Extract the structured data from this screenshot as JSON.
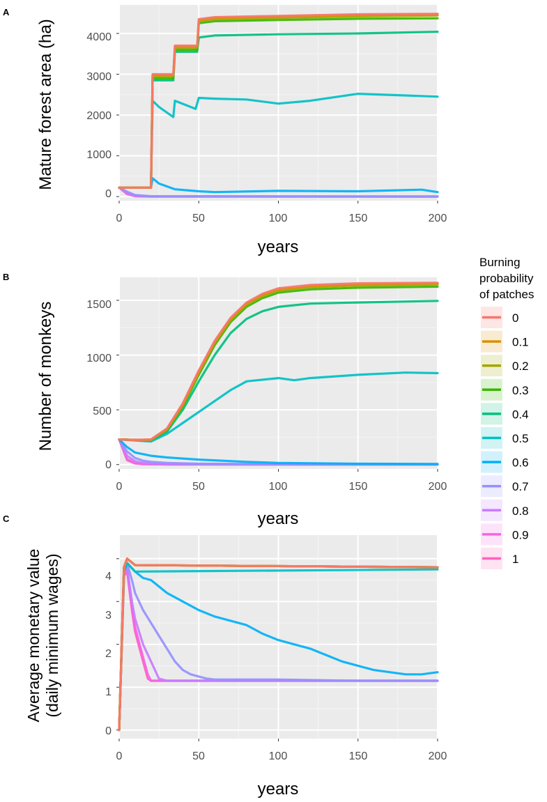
{
  "legend": {
    "title": [
      "Burning",
      "probability",
      "of patches"
    ],
    "items": [
      {
        "label": "0",
        "color": "#F8766D"
      },
      {
        "label": "0.1",
        "color": "#D89000"
      },
      {
        "label": "0.2",
        "color": "#A3A500"
      },
      {
        "label": "0.3",
        "color": "#39B600"
      },
      {
        "label": "0.4",
        "color": "#00BF7D"
      },
      {
        "label": "0.5",
        "color": "#00BFC4"
      },
      {
        "label": "0.6",
        "color": "#00B0F6"
      },
      {
        "label": "0.7",
        "color": "#9590FF"
      },
      {
        "label": "0.8",
        "color": "#C77CFF"
      },
      {
        "label": "0.9",
        "color": "#F564E3"
      },
      {
        "label": "1",
        "color": "#FF62BC"
      }
    ]
  },
  "chart_data": [
    {
      "panel": "A",
      "type": "line",
      "xlabel": "years",
      "ylabel": "Mature forest area (ha)",
      "xlim": [
        0,
        200
      ],
      "ylim": [
        -100,
        4700
      ],
      "xticks": [
        0,
        50,
        100,
        150,
        200
      ],
      "yticks": [
        0,
        1000,
        2000,
        3000,
        4000
      ],
      "series": [
        {
          "name": "0",
          "x": [
            0,
            20,
            21,
            34,
            35,
            49,
            50,
            60,
            100,
            150,
            200
          ],
          "y": [
            220,
            220,
            3000,
            3000,
            3700,
            3700,
            4350,
            4400,
            4430,
            4470,
            4480
          ],
          "band": [
            0,
            0
          ]
        },
        {
          "name": "0.1",
          "x": [
            0,
            20,
            21,
            34,
            35,
            49,
            50,
            60,
            100,
            150,
            200
          ],
          "y": [
            220,
            220,
            2980,
            2980,
            3680,
            3680,
            4330,
            4380,
            4410,
            4450,
            4470
          ],
          "band": [
            0,
            0
          ]
        },
        {
          "name": "0.2",
          "x": [
            0,
            20,
            21,
            34,
            35,
            49,
            50,
            60,
            100,
            150,
            200
          ],
          "y": [
            220,
            220,
            2950,
            2950,
            3650,
            3650,
            4300,
            4350,
            4380,
            4420,
            4440
          ],
          "band": [
            0,
            0
          ]
        },
        {
          "name": "0.3",
          "x": [
            0,
            20,
            21,
            34,
            35,
            49,
            50,
            60,
            100,
            150,
            200
          ],
          "y": [
            220,
            220,
            2900,
            2900,
            3600,
            3600,
            4250,
            4300,
            4330,
            4360,
            4370
          ],
          "band": [
            0,
            0
          ]
        },
        {
          "name": "0.4",
          "x": [
            0,
            20,
            21,
            34,
            35,
            49,
            50,
            60,
            100,
            150,
            200
          ],
          "y": [
            220,
            220,
            2850,
            2850,
            3550,
            3550,
            3900,
            3950,
            3980,
            4000,
            4040
          ],
          "band": [
            0,
            0
          ]
        },
        {
          "name": "0.5",
          "x": [
            0,
            20,
            21,
            25,
            34,
            35,
            48,
            50,
            60,
            80,
            100,
            120,
            150,
            180,
            200
          ],
          "y": [
            220,
            220,
            2350,
            2200,
            1950,
            2350,
            2150,
            2420,
            2400,
            2380,
            2280,
            2350,
            2520,
            2480,
            2450
          ],
          "band": [
            0,
            0
          ]
        },
        {
          "name": "0.6",
          "x": [
            0,
            20,
            21,
            25,
            35,
            50,
            60,
            100,
            150,
            190,
            200
          ],
          "y": [
            220,
            220,
            450,
            320,
            180,
            130,
            110,
            140,
            130,
            170,
            110
          ],
          "band": [
            0,
            0
          ]
        },
        {
          "name": "0.7",
          "x": [
            0,
            5,
            10,
            20,
            200
          ],
          "y": [
            220,
            120,
            40,
            10,
            5
          ],
          "band": [
            0,
            0
          ]
        },
        {
          "name": "0.8",
          "x": [
            0,
            5,
            10,
            20,
            200
          ],
          "y": [
            220,
            100,
            20,
            5,
            2
          ],
          "band": [
            0,
            0
          ]
        },
        {
          "name": "0.9",
          "x": [
            0,
            5,
            10,
            20,
            200
          ],
          "y": [
            220,
            80,
            15,
            3,
            0
          ],
          "band": [
            0,
            0
          ]
        },
        {
          "name": "1",
          "x": [
            0,
            5,
            10,
            20,
            200
          ],
          "y": [
            220,
            60,
            10,
            0,
            0
          ],
          "band": [
            0,
            0
          ]
        }
      ]
    },
    {
      "panel": "B",
      "type": "line",
      "xlabel": "years",
      "ylabel": "Number of monkeys",
      "xlim": [
        0,
        200
      ],
      "ylim": [
        -40,
        1710
      ],
      "xticks": [
        0,
        50,
        100,
        150,
        200
      ],
      "yticks": [
        0,
        500,
        1000,
        1500
      ],
      "series": [
        {
          "name": "0",
          "x": [
            0,
            10,
            20,
            30,
            40,
            50,
            60,
            70,
            80,
            90,
            100,
            120,
            150,
            200
          ],
          "y": [
            230,
            225,
            230,
            330,
            560,
            860,
            1130,
            1340,
            1480,
            1560,
            1610,
            1640,
            1655,
            1660
          ],
          "band": [
            0,
            0
          ]
        },
        {
          "name": "0.1",
          "x": [
            0,
            10,
            20,
            30,
            40,
            50,
            60,
            70,
            80,
            90,
            100,
            120,
            150,
            200
          ],
          "y": [
            230,
            225,
            228,
            325,
            550,
            850,
            1120,
            1330,
            1470,
            1550,
            1600,
            1630,
            1645,
            1655
          ],
          "band": [
            0,
            0
          ]
        },
        {
          "name": "0.2",
          "x": [
            0,
            10,
            20,
            30,
            40,
            50,
            60,
            70,
            80,
            90,
            100,
            120,
            150,
            200
          ],
          "y": [
            230,
            225,
            225,
            320,
            540,
            840,
            1110,
            1320,
            1460,
            1540,
            1590,
            1620,
            1635,
            1645
          ],
          "band": [
            0,
            0
          ]
        },
        {
          "name": "0.3",
          "x": [
            0,
            10,
            20,
            30,
            40,
            50,
            60,
            70,
            80,
            90,
            100,
            120,
            150,
            200
          ],
          "y": [
            230,
            225,
            225,
            315,
            530,
            820,
            1090,
            1300,
            1440,
            1520,
            1570,
            1600,
            1615,
            1625
          ],
          "band": [
            0,
            0
          ]
        },
        {
          "name": "0.4",
          "x": [
            0,
            10,
            20,
            30,
            40,
            50,
            60,
            70,
            80,
            90,
            100,
            120,
            150,
            200
          ],
          "y": [
            230,
            225,
            222,
            300,
            500,
            760,
            1000,
            1200,
            1330,
            1400,
            1440,
            1470,
            1480,
            1495
          ],
          "band": [
            0,
            0
          ]
        },
        {
          "name": "0.5",
          "x": [
            0,
            10,
            20,
            30,
            40,
            50,
            60,
            70,
            80,
            100,
            110,
            120,
            150,
            180,
            200
          ],
          "y": [
            230,
            220,
            210,
            280,
            380,
            480,
            580,
            680,
            760,
            790,
            770,
            790,
            820,
            840,
            835
          ],
          "band": [
            0,
            0
          ]
        },
        {
          "name": "0.6",
          "x": [
            0,
            5,
            10,
            20,
            30,
            50,
            80,
            100,
            150,
            200
          ],
          "y": [
            230,
            160,
            110,
            80,
            65,
            45,
            25,
            15,
            8,
            5
          ],
          "band": [
            0,
            0
          ]
        },
        {
          "name": "0.7",
          "x": [
            0,
            5,
            10,
            15,
            20,
            30,
            50,
            100,
            200
          ],
          "y": [
            230,
            120,
            60,
            35,
            25,
            15,
            8,
            4,
            2
          ],
          "band": [
            0,
            0
          ]
        },
        {
          "name": "0.8",
          "x": [
            0,
            5,
            10,
            15,
            20,
            30,
            50,
            200
          ],
          "y": [
            230,
            80,
            30,
            15,
            8,
            4,
            2,
            0
          ],
          "band": [
            0,
            0
          ]
        },
        {
          "name": "0.9",
          "x": [
            0,
            5,
            10,
            15,
            20,
            30,
            200
          ],
          "y": [
            230,
            50,
            15,
            6,
            3,
            1,
            0
          ],
          "band": [
            0,
            0
          ]
        },
        {
          "name": "1",
          "x": [
            0,
            5,
            10,
            15,
            20,
            200
          ],
          "y": [
            230,
            40,
            10,
            4,
            2,
            0
          ],
          "band": [
            0,
            0
          ]
        }
      ]
    },
    {
      "panel": "C",
      "type": "line",
      "xlabel": "years",
      "ylabel": "Average monetary value (daily minimum wages)",
      "xlim": [
        0,
        200
      ],
      "ylim": [
        -0.2,
        4.55
      ],
      "xticks": [
        0,
        50,
        100,
        150,
        200
      ],
      "yticks": [
        0,
        1,
        2,
        3,
        4
      ],
      "series": [
        {
          "name": "0",
          "x": [
            0,
            3,
            5,
            10,
            200
          ],
          "y": [
            0,
            3.8,
            4.0,
            3.85,
            3.8
          ],
          "band": [
            0,
            0
          ]
        },
        {
          "name": "0.1",
          "x": [
            0,
            3,
            5,
            10,
            200
          ],
          "y": [
            0,
            3.8,
            4.0,
            3.85,
            3.8
          ],
          "band": [
            0,
            0
          ]
        },
        {
          "name": "0.2",
          "x": [
            0,
            3,
            5,
            10,
            200
          ],
          "y": [
            0,
            3.8,
            4.0,
            3.85,
            3.8
          ],
          "band": [
            0,
            0
          ]
        },
        {
          "name": "0.3",
          "x": [
            0,
            3,
            5,
            10,
            200
          ],
          "y": [
            0,
            3.8,
            4.0,
            3.85,
            3.8
          ],
          "band": [
            0,
            0
          ]
        },
        {
          "name": "0.4",
          "x": [
            0,
            3,
            5,
            10,
            200
          ],
          "y": [
            0,
            3.8,
            4.0,
            3.85,
            3.8
          ],
          "band": [
            0,
            0
          ]
        },
        {
          "name": "0.5",
          "x": [
            0,
            3,
            5,
            10,
            200
          ],
          "y": [
            0,
            3.7,
            3.9,
            3.7,
            3.75
          ],
          "band": [
            0,
            0
          ]
        },
        {
          "name": "0.6",
          "x": [
            0,
            3,
            5,
            10,
            15,
            20,
            30,
            40,
            50,
            60,
            70,
            80,
            90,
            100,
            110,
            120,
            130,
            140,
            150,
            160,
            170,
            180,
            190,
            200
          ],
          "y": [
            0,
            3.7,
            3.9,
            3.7,
            3.55,
            3.5,
            3.2,
            3.0,
            2.8,
            2.65,
            2.55,
            2.45,
            2.25,
            2.1,
            2.0,
            1.9,
            1.75,
            1.6,
            1.5,
            1.4,
            1.35,
            1.3,
            1.3,
            1.35
          ],
          "band": [
            0,
            0
          ]
        },
        {
          "name": "0.7",
          "x": [
            0,
            3,
            5,
            8,
            10,
            15,
            20,
            25,
            30,
            35,
            40,
            45,
            50,
            55,
            60,
            100,
            150,
            200
          ],
          "y": [
            0,
            3.7,
            3.9,
            3.5,
            3.2,
            2.8,
            2.5,
            2.2,
            1.9,
            1.6,
            1.4,
            1.3,
            1.25,
            1.2,
            1.18,
            1.18,
            1.15,
            1.15
          ],
          "band": [
            0,
            0
          ]
        },
        {
          "name": "0.8",
          "x": [
            0,
            3,
            5,
            8,
            10,
            15,
            20,
            25,
            30,
            200
          ],
          "y": [
            0,
            3.6,
            3.8,
            3.0,
            2.6,
            2.0,
            1.6,
            1.2,
            1.15,
            1.15
          ],
          "band": [
            0,
            0
          ]
        },
        {
          "name": "0.9",
          "x": [
            0,
            3,
            5,
            8,
            10,
            15,
            18,
            20,
            200
          ],
          "y": [
            0,
            3.6,
            3.75,
            2.9,
            2.4,
            1.7,
            1.3,
            1.15,
            1.15
          ],
          "band": [
            0,
            0
          ]
        },
        {
          "name": "1",
          "x": [
            0,
            3,
            5,
            8,
            10,
            15,
            18,
            20,
            200
          ],
          "y": [
            0,
            3.6,
            3.7,
            2.8,
            2.3,
            1.6,
            1.2,
            1.15,
            1.15
          ],
          "band": [
            0,
            0
          ]
        }
      ]
    }
  ],
  "panels": [
    {
      "letter": "A",
      "ylabel": "Mature forest area (ha)",
      "xlabel": "years",
      "xticklabels": [
        "0",
        "50",
        "100",
        "150",
        "200"
      ],
      "yticklabels": [
        "0",
        "1000",
        "2000",
        "3000",
        "4000"
      ]
    },
    {
      "letter": "B",
      "ylabel": "Number of monkeys",
      "xlabel": "years",
      "xticklabels": [
        "0",
        "50",
        "100",
        "150",
        "200"
      ],
      "yticklabels": [
        "0",
        "500",
        "1000",
        "1500"
      ]
    },
    {
      "letter": "C",
      "ylabel_line1": "Average monetary value",
      "ylabel_line2": "(daily minimum wages)",
      "xlabel": "years",
      "xticklabels": [
        "0",
        "50",
        "100",
        "150",
        "200"
      ],
      "yticklabels": [
        "0",
        "1",
        "2",
        "3",
        "4"
      ]
    }
  ]
}
